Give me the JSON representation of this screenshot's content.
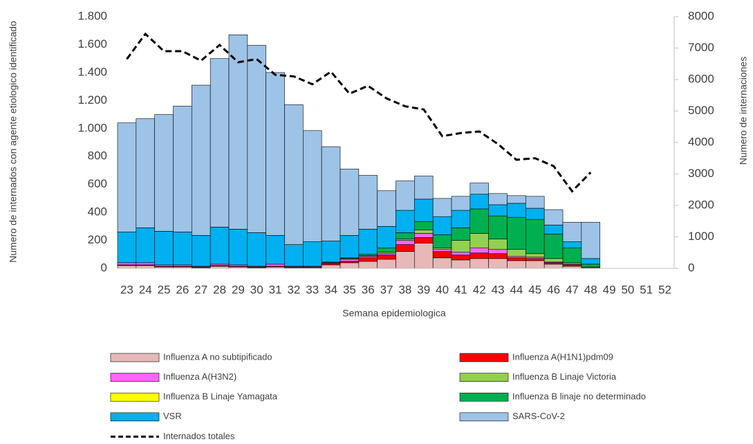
{
  "chart_data": {
    "type": "bar",
    "stacked": true,
    "x_label": "Semana epidemiologica",
    "y_label": "Numero de internados con agente etiologico identificado",
    "y2_label": "Numero de internaciones",
    "categories": [
      "23",
      "24",
      "25",
      "26",
      "27",
      "28",
      "29",
      "30",
      "31",
      "32",
      "33",
      "34",
      "35",
      "36",
      "37",
      "38",
      "39",
      "40",
      "41",
      "42",
      "43",
      "44",
      "45",
      "46",
      "47",
      "48",
      "49",
      "50",
      "51",
      "52"
    ],
    "ylim": [
      0,
      1800
    ],
    "yticks": [
      0,
      200,
      400,
      600,
      800,
      {
        "value": 1000,
        "label": "1.000"
      },
      {
        "value": 1200,
        "label": "1.200"
      },
      {
        "value": 1400,
        "label": "1.400"
      },
      {
        "value": 1600,
        "label": "1.600"
      },
      {
        "value": 1800,
        "label": "1.800"
      }
    ],
    "y2lim": [
      0,
      8000
    ],
    "y2ticks": [
      0,
      1000,
      2000,
      3000,
      4000,
      5000,
      6000,
      7000,
      8000
    ],
    "series": [
      {
        "name": "Influenza A no subtipificado",
        "color": "#e6b9b8",
        "values": [
          20,
          20,
          10,
          10,
          5,
          15,
          10,
          5,
          10,
          5,
          5,
          25,
          40,
          50,
          65,
          120,
          180,
          75,
          60,
          70,
          70,
          55,
          55,
          30,
          15,
          5,
          null,
          null,
          null,
          null
        ]
      },
      {
        "name": "Influenza A(H1N1)pdm09",
        "color": "#ff0000",
        "values": [
          5,
          5,
          5,
          5,
          5,
          5,
          5,
          5,
          5,
          5,
          5,
          10,
          10,
          25,
          30,
          50,
          40,
          45,
          35,
          40,
          35,
          20,
          15,
          10,
          10,
          0,
          null,
          null,
          null,
          null
        ]
      },
      {
        "name": "Influenza A(H3N2)",
        "color": "#ff66ff",
        "values": [
          15,
          15,
          10,
          10,
          5,
          10,
          10,
          5,
          15,
          5,
          5,
          5,
          15,
          10,
          10,
          30,
          30,
          15,
          20,
          35,
          30,
          10,
          10,
          5,
          5,
          0,
          null,
          null,
          null,
          null
        ]
      },
      {
        "name": "Influenza B Linaje Victoria",
        "color": "#92d050",
        "values": [
          0,
          0,
          0,
          0,
          0,
          0,
          0,
          0,
          0,
          0,
          0,
          0,
          5,
          5,
          10,
          10,
          25,
          10,
          85,
          105,
          75,
          50,
          25,
          25,
          10,
          5,
          null,
          null,
          null,
          null
        ]
      },
      {
        "name": "Influenza B Linaje Yamagata",
        "color": "#ffff00",
        "values": [
          0,
          0,
          0,
          0,
          0,
          0,
          0,
          0,
          0,
          0,
          0,
          0,
          0,
          0,
          0,
          0,
          0,
          0,
          0,
          0,
          0,
          0,
          0,
          0,
          0,
          0,
          null,
          null,
          null,
          null
        ]
      },
      {
        "name": "Influenza B linaje no determinado",
        "color": "#00b050",
        "values": [
          0,
          0,
          0,
          0,
          0,
          0,
          0,
          0,
          0,
          0,
          0,
          5,
          5,
          10,
          30,
          45,
          60,
          95,
          90,
          175,
          165,
          230,
          245,
          175,
          105,
          20,
          null,
          null,
          null,
          null
        ]
      },
      {
        "name": "VSR",
        "color": "#00b0f0",
        "values": [
          220,
          250,
          240,
          235,
          220,
          265,
          255,
          240,
          205,
          155,
          175,
          150,
          160,
          180,
          155,
          160,
          160,
          130,
          125,
          105,
          80,
          100,
          80,
          65,
          45,
          40,
          null,
          null,
          null,
          null
        ]
      },
      {
        "name": "SARS-CoV-2",
        "color": "#9dc3e6",
        "values": [
          780,
          780,
          835,
          900,
          1075,
          1205,
          1390,
          1340,
          1165,
          1000,
          795,
          675,
          475,
          385,
          255,
          210,
          165,
          130,
          100,
          80,
          80,
          55,
          85,
          110,
          140,
          260,
          null,
          null,
          null,
          null
        ]
      },
      {
        "name": "Internados totales",
        "color": "#000000",
        "type": "line",
        "axis": "y2",
        "dashed": true,
        "values": [
          6650,
          7450,
          6900,
          6900,
          6600,
          7100,
          6550,
          6650,
          6150,
          6100,
          5850,
          6250,
          5550,
          5800,
          5400,
          5150,
          5050,
          4200,
          4300,
          4350,
          3950,
          3450,
          3500,
          3250,
          2450,
          3050,
          null,
          null,
          null,
          null
        ]
      }
    ]
  }
}
